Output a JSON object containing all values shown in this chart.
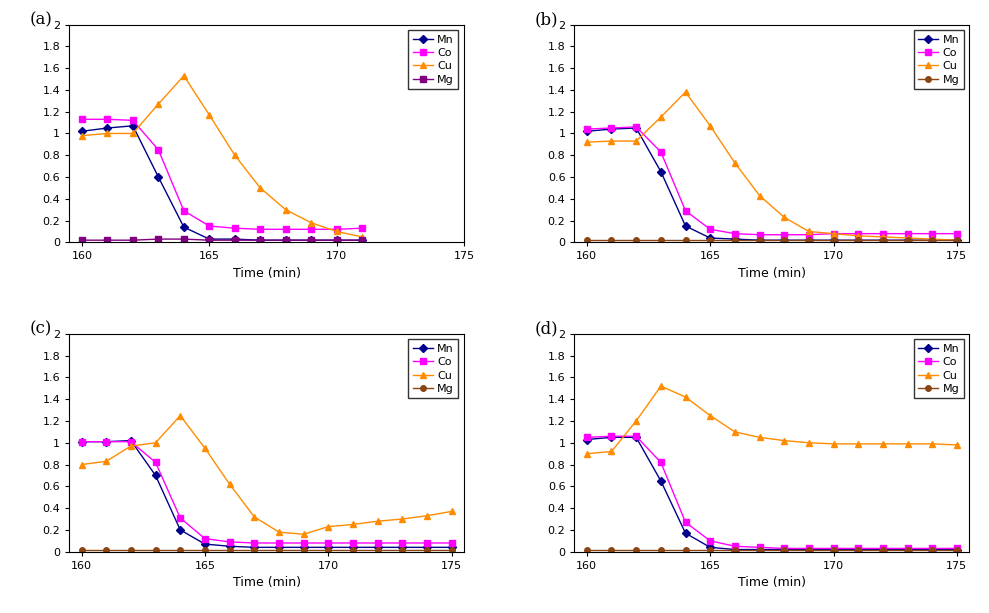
{
  "subplots": [
    "(a)",
    "(b)",
    "(c)",
    "(d)"
  ],
  "xlim_a": [
    159.5,
    175
  ],
  "xlim_bcd": [
    159.5,
    175.5
  ],
  "ylim": [
    0,
    2
  ],
  "xticks": [
    160,
    165,
    170,
    175
  ],
  "yticks": [
    0,
    0.2,
    0.4,
    0.6,
    0.8,
    1.0,
    1.2,
    1.4,
    1.6,
    1.8,
    2.0
  ],
  "xlabel": "Time (min)",
  "series": {
    "Mn": {
      "color": "#00008B",
      "marker": "D",
      "markersize": 4
    },
    "Co": {
      "color": "#FF00FF",
      "marker": "s",
      "markersize": 4
    },
    "Cu": {
      "color": "#FF8C00",
      "marker": "^",
      "markersize": 5
    },
    "Mg_a": {
      "color": "#800080",
      "marker": "s",
      "markersize": 4
    },
    "Mg_bcd": {
      "color": "#8B4513",
      "marker": "o",
      "markersize": 4
    }
  },
  "data": {
    "a": {
      "Mn": {
        "x": [
          160,
          161,
          162,
          163,
          164,
          165,
          166,
          167,
          168,
          169,
          170,
          171
        ],
        "y": [
          1.02,
          1.05,
          1.07,
          0.6,
          0.14,
          0.03,
          0.03,
          0.02,
          0.02,
          0.02,
          0.02,
          0.02
        ]
      },
      "Co": {
        "x": [
          160,
          161,
          162,
          163,
          164,
          165,
          166,
          167,
          168,
          169,
          170,
          171
        ],
        "y": [
          1.13,
          1.13,
          1.12,
          0.85,
          0.29,
          0.15,
          0.13,
          0.12,
          0.12,
          0.12,
          0.12,
          0.13
        ]
      },
      "Cu": {
        "x": [
          160,
          161,
          162,
          163,
          164,
          165,
          166,
          167,
          168,
          169,
          170,
          171
        ],
        "y": [
          0.98,
          1.0,
          1.0,
          1.27,
          1.53,
          1.17,
          0.8,
          0.5,
          0.3,
          0.18,
          0.1,
          0.05
        ]
      },
      "Mg": {
        "x": [
          160,
          161,
          162,
          163,
          164,
          165,
          166,
          167,
          168,
          169,
          170,
          171
        ],
        "y": [
          0.02,
          0.02,
          0.02,
          0.03,
          0.03,
          0.02,
          0.02,
          0.02,
          0.02,
          0.02,
          0.02,
          0.02
        ]
      }
    },
    "b": {
      "Mn": {
        "x": [
          160,
          161,
          162,
          163,
          164,
          165,
          166,
          167,
          168,
          169,
          170,
          171,
          172,
          173,
          174,
          175
        ],
        "y": [
          1.02,
          1.04,
          1.05,
          0.65,
          0.15,
          0.04,
          0.03,
          0.02,
          0.02,
          0.02,
          0.02,
          0.02,
          0.02,
          0.02,
          0.02,
          0.02
        ]
      },
      "Co": {
        "x": [
          160,
          161,
          162,
          163,
          164,
          165,
          166,
          167,
          168,
          169,
          170,
          171,
          172,
          173,
          174,
          175
        ],
        "y": [
          1.04,
          1.05,
          1.06,
          0.83,
          0.29,
          0.12,
          0.08,
          0.07,
          0.07,
          0.07,
          0.08,
          0.08,
          0.08,
          0.08,
          0.08,
          0.08
        ]
      },
      "Cu": {
        "x": [
          160,
          161,
          162,
          163,
          164,
          165,
          166,
          167,
          168,
          169,
          170,
          171,
          172,
          173,
          174,
          175
        ],
        "y": [
          0.92,
          0.93,
          0.93,
          1.15,
          1.38,
          1.07,
          0.73,
          0.43,
          0.23,
          0.1,
          0.08,
          0.06,
          0.05,
          0.04,
          0.03,
          0.02
        ]
      },
      "Mg": {
        "x": [
          160,
          161,
          162,
          163,
          164,
          165,
          166,
          167,
          168,
          169,
          170,
          171,
          172,
          173,
          174,
          175
        ],
        "y": [
          0.02,
          0.02,
          0.02,
          0.02,
          0.02,
          0.02,
          0.02,
          0.02,
          0.02,
          0.02,
          0.02,
          0.02,
          0.02,
          0.02,
          0.02,
          0.02
        ]
      }
    },
    "c": {
      "Mn": {
        "x": [
          160,
          161,
          162,
          163,
          164,
          165,
          166,
          167,
          168,
          169,
          170,
          171,
          172,
          173,
          174,
          175
        ],
        "y": [
          1.01,
          1.01,
          1.02,
          0.7,
          0.2,
          0.07,
          0.05,
          0.04,
          0.04,
          0.04,
          0.04,
          0.04,
          0.04,
          0.04,
          0.04,
          0.04
        ]
      },
      "Co": {
        "x": [
          160,
          161,
          162,
          163,
          164,
          165,
          166,
          167,
          168,
          169,
          170,
          171,
          172,
          173,
          174,
          175
        ],
        "y": [
          1.01,
          1.01,
          1.01,
          0.82,
          0.31,
          0.12,
          0.09,
          0.08,
          0.08,
          0.08,
          0.08,
          0.08,
          0.08,
          0.08,
          0.08,
          0.08
        ]
      },
      "Cu": {
        "x": [
          160,
          161,
          162,
          163,
          164,
          165,
          166,
          167,
          168,
          169,
          170,
          171,
          172,
          173,
          174,
          175
        ],
        "y": [
          0.8,
          0.83,
          0.97,
          1.0,
          1.25,
          0.95,
          0.62,
          0.32,
          0.18,
          0.16,
          0.23,
          0.25,
          0.28,
          0.3,
          0.33,
          0.37
        ]
      },
      "Mg": {
        "x": [
          160,
          161,
          162,
          163,
          164,
          165,
          166,
          167,
          168,
          169,
          170,
          171,
          172,
          173,
          174,
          175
        ],
        "y": [
          0.02,
          0.02,
          0.02,
          0.02,
          0.02,
          0.02,
          0.02,
          0.02,
          0.02,
          0.02,
          0.02,
          0.02,
          0.02,
          0.02,
          0.02,
          0.02
        ]
      }
    },
    "d": {
      "Mn": {
        "x": [
          160,
          161,
          162,
          163,
          164,
          165,
          166,
          167,
          168,
          169,
          170,
          171,
          172,
          173,
          174,
          175
        ],
        "y": [
          1.03,
          1.05,
          1.05,
          0.65,
          0.17,
          0.04,
          0.02,
          0.02,
          0.02,
          0.02,
          0.02,
          0.02,
          0.02,
          0.02,
          0.02,
          0.02
        ]
      },
      "Co": {
        "x": [
          160,
          161,
          162,
          163,
          164,
          165,
          166,
          167,
          168,
          169,
          170,
          171,
          172,
          173,
          174,
          175
        ],
        "y": [
          1.05,
          1.06,
          1.06,
          0.82,
          0.27,
          0.1,
          0.05,
          0.04,
          0.03,
          0.03,
          0.03,
          0.03,
          0.03,
          0.03,
          0.03,
          0.03
        ]
      },
      "Cu": {
        "x": [
          160,
          161,
          162,
          163,
          164,
          165,
          166,
          167,
          168,
          169,
          170,
          171,
          172,
          173,
          174,
          175
        ],
        "y": [
          0.9,
          0.92,
          1.2,
          1.52,
          1.42,
          1.25,
          1.1,
          1.05,
          1.02,
          1.0,
          0.99,
          0.99,
          0.99,
          0.99,
          0.99,
          0.98
        ]
      },
      "Mg": {
        "x": [
          160,
          161,
          162,
          163,
          164,
          165,
          166,
          167,
          168,
          169,
          170,
          171,
          172,
          173,
          174,
          175
        ],
        "y": [
          0.02,
          0.02,
          0.02,
          0.02,
          0.02,
          0.02,
          0.02,
          0.02,
          0.02,
          0.02,
          0.02,
          0.02,
          0.02,
          0.02,
          0.02,
          0.02
        ]
      }
    }
  },
  "legend_labels": [
    "Mn",
    "Co",
    "Cu",
    "Mg"
  ]
}
